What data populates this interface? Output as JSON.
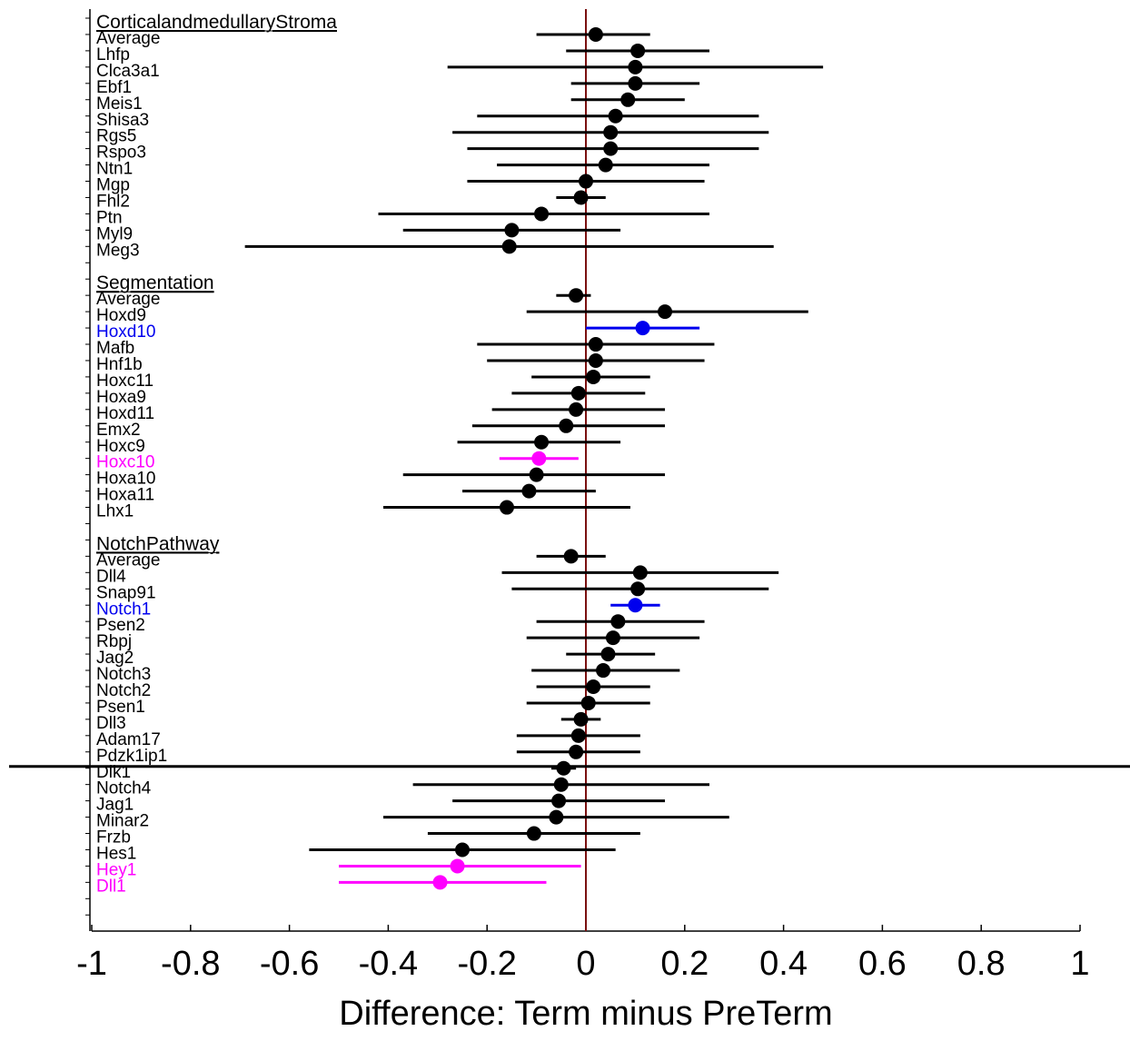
{
  "chart_data": {
    "type": "scatter",
    "subtype": "forest-plot",
    "xlabel": "Difference: Term minus PreTerm",
    "xlim": [
      -1,
      1
    ],
    "xticks": [
      -1,
      -0.8,
      -0.6,
      -0.4,
      -0.2,
      0,
      0.2,
      0.4,
      0.6,
      0.8,
      1
    ],
    "xtick_labels": [
      "-1",
      "-0.8",
      "-0.6",
      "-0.4",
      "-0.2",
      "0",
      "0.2",
      "0.4",
      "0.6",
      "0.8",
      "1"
    ],
    "reference_line_x": 0,
    "colors": {
      "default": "#000000",
      "blue": "#0000ee",
      "magenta": "#ff00ff",
      "reference": "#7a1010"
    },
    "groups": [
      {
        "title": "CorticalandmedullaryStroma",
        "rows": [
          {
            "label": "Average",
            "est": 0.02,
            "lo": -0.1,
            "hi": 0.13,
            "color": "default"
          },
          {
            "label": "Lhfp",
            "est": 0.105,
            "lo": -0.04,
            "hi": 0.25,
            "color": "default"
          },
          {
            "label": "Clca3a1",
            "est": 0.1,
            "lo": -0.28,
            "hi": 0.48,
            "color": "default"
          },
          {
            "label": "Ebf1",
            "est": 0.1,
            "lo": -0.03,
            "hi": 0.23,
            "color": "default"
          },
          {
            "label": "Meis1",
            "est": 0.085,
            "lo": -0.03,
            "hi": 0.2,
            "color": "default"
          },
          {
            "label": "Shisa3",
            "est": 0.06,
            "lo": -0.22,
            "hi": 0.35,
            "color": "default"
          },
          {
            "label": "Rgs5",
            "est": 0.05,
            "lo": -0.27,
            "hi": 0.37,
            "color": "default"
          },
          {
            "label": "Rspo3",
            "est": 0.05,
            "lo": -0.24,
            "hi": 0.35,
            "color": "default"
          },
          {
            "label": "Ntn1",
            "est": 0.04,
            "lo": -0.18,
            "hi": 0.25,
            "color": "default"
          },
          {
            "label": "Mgp",
            "est": 0.0,
            "lo": -0.24,
            "hi": 0.24,
            "color": "default"
          },
          {
            "label": "Fhl2",
            "est": -0.01,
            "lo": -0.06,
            "hi": 0.04,
            "color": "default"
          },
          {
            "label": "Ptn",
            "est": -0.09,
            "lo": -0.42,
            "hi": 0.25,
            "color": "default"
          },
          {
            "label": "Myl9",
            "est": -0.15,
            "lo": -0.37,
            "hi": 0.07,
            "color": "default"
          },
          {
            "label": "Meg3",
            "est": -0.155,
            "lo": -0.69,
            "hi": 0.38,
            "color": "default"
          }
        ]
      },
      {
        "title": "Segmentation",
        "rows": [
          {
            "label": "Average",
            "est": -0.02,
            "lo": -0.06,
            "hi": 0.01,
            "color": "default"
          },
          {
            "label": "Hoxd9",
            "est": 0.16,
            "lo": -0.12,
            "hi": 0.45,
            "color": "default"
          },
          {
            "label": "Hoxd10",
            "est": 0.115,
            "lo": 0.0,
            "hi": 0.23,
            "color": "blue"
          },
          {
            "label": "Mafb",
            "est": 0.02,
            "lo": -0.22,
            "hi": 0.26,
            "color": "default"
          },
          {
            "label": "Hnf1b",
            "est": 0.02,
            "lo": -0.2,
            "hi": 0.24,
            "color": "default"
          },
          {
            "label": "Hoxc11",
            "est": 0.015,
            "lo": -0.11,
            "hi": 0.13,
            "color": "default"
          },
          {
            "label": "Hoxa9",
            "est": -0.015,
            "lo": -0.15,
            "hi": 0.12,
            "color": "default"
          },
          {
            "label": "Hoxd11",
            "est": -0.02,
            "lo": -0.19,
            "hi": 0.16,
            "color": "default"
          },
          {
            "label": "Emx2",
            "est": -0.04,
            "lo": -0.23,
            "hi": 0.16,
            "color": "default"
          },
          {
            "label": "Hoxc9",
            "est": -0.09,
            "lo": -0.26,
            "hi": 0.07,
            "color": "default"
          },
          {
            "label": "Hoxc10",
            "est": -0.095,
            "lo": -0.175,
            "hi": -0.015,
            "color": "magenta"
          },
          {
            "label": "Hoxa10",
            "est": -0.1,
            "lo": -0.37,
            "hi": 0.16,
            "color": "default"
          },
          {
            "label": "Hoxa11",
            "est": -0.115,
            "lo": -0.25,
            "hi": 0.02,
            "color": "default"
          },
          {
            "label": "Lhx1",
            "est": -0.16,
            "lo": -0.41,
            "hi": 0.09,
            "color": "default"
          }
        ]
      },
      {
        "title": "NotchPathway",
        "rows": [
          {
            "label": "Average",
            "est": -0.03,
            "lo": -0.1,
            "hi": 0.04,
            "color": "default"
          },
          {
            "label": "Dll4",
            "est": 0.11,
            "lo": -0.17,
            "hi": 0.39,
            "color": "default"
          },
          {
            "label": "Snap91",
            "est": 0.105,
            "lo": -0.15,
            "hi": 0.37,
            "color": "default"
          },
          {
            "label": "Notch1",
            "est": 0.1,
            "lo": 0.05,
            "hi": 0.15,
            "color": "blue"
          },
          {
            "label": "Psen2",
            "est": 0.065,
            "lo": -0.1,
            "hi": 0.24,
            "color": "default"
          },
          {
            "label": "Rbpj",
            "est": 0.055,
            "lo": -0.12,
            "hi": 0.23,
            "color": "default"
          },
          {
            "label": "Jag2",
            "est": 0.045,
            "lo": -0.04,
            "hi": 0.14,
            "color": "default"
          },
          {
            "label": "Notch3",
            "est": 0.035,
            "lo": -0.11,
            "hi": 0.19,
            "color": "default"
          },
          {
            "label": "Notch2",
            "est": 0.015,
            "lo": -0.1,
            "hi": 0.13,
            "color": "default"
          },
          {
            "label": "Psen1",
            "est": 0.005,
            "lo": -0.12,
            "hi": 0.13,
            "color": "default"
          },
          {
            "label": "Dll3",
            "est": -0.01,
            "lo": -0.05,
            "hi": 0.03,
            "color": "default"
          },
          {
            "label": "Adam17",
            "est": -0.015,
            "lo": -0.14,
            "hi": 0.11,
            "color": "default"
          },
          {
            "label": "Pdzk1ip1",
            "est": -0.02,
            "lo": -0.14,
            "hi": 0.11,
            "color": "default"
          },
          {
            "label": "Dlk1",
            "est": -0.045,
            "lo": -0.07,
            "hi": -0.02,
            "color": "default"
          },
          {
            "label": "Notch4",
            "est": -0.05,
            "lo": -0.35,
            "hi": 0.25,
            "color": "default"
          },
          {
            "label": "Jag1",
            "est": -0.055,
            "lo": -0.27,
            "hi": 0.16,
            "color": "default"
          },
          {
            "label": "Minar2",
            "est": -0.06,
            "lo": -0.41,
            "hi": 0.29,
            "color": "default"
          },
          {
            "label": "Frzb",
            "est": -0.105,
            "lo": -0.32,
            "hi": 0.11,
            "color": "default"
          },
          {
            "label": "Hes1",
            "est": -0.25,
            "lo": -0.56,
            "hi": 0.06,
            "color": "default"
          },
          {
            "label": "Hey1",
            "est": -0.26,
            "lo": -0.5,
            "hi": -0.01,
            "color": "magenta"
          },
          {
            "label": "Dll1",
            "est": -0.295,
            "lo": -0.5,
            "hi": -0.08,
            "color": "magenta"
          }
        ]
      }
    ]
  }
}
